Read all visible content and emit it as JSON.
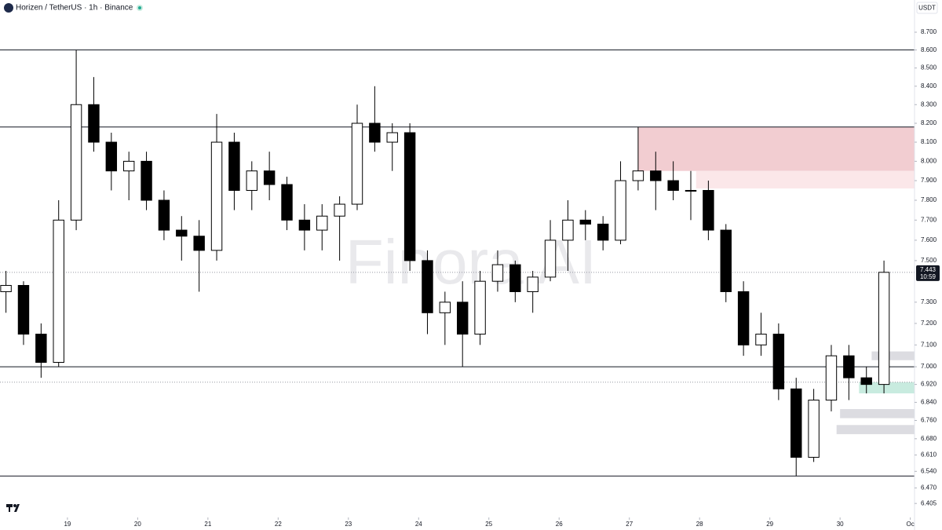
{
  "chart_data": {
    "type": "candlestick",
    "title": "Horizen / TetherUS · 1h · Binance",
    "currency": "USDT",
    "watermark": "Finora AI",
    "log_scale": true,
    "up_color": "#ffffff",
    "down_color": "#000000",
    "x": [
      18.0,
      18.25,
      18.5,
      18.75,
      19.0,
      19.25,
      19.5,
      19.75,
      20.0,
      20.25,
      20.5,
      20.75,
      21.0,
      21.25,
      21.5,
      21.75,
      22.0,
      22.25,
      22.5,
      22.75,
      23.0,
      23.25,
      23.5,
      23.75,
      24.0,
      24.25,
      24.5,
      24.75,
      25.0,
      25.25,
      25.5,
      25.75,
      26.0,
      26.25,
      26.5,
      26.75,
      27.0,
      27.25,
      27.5,
      27.75,
      28.0,
      28.25,
      28.5,
      28.75,
      29.0,
      29.25,
      29.5,
      29.75,
      30.0,
      30.25,
      30.5
    ],
    "open": [
      7.35,
      7.38,
      7.15,
      7.02,
      7.7,
      8.3,
      8.1,
      7.95,
      8.0,
      7.8,
      7.65,
      7.62,
      7.55,
      8.1,
      7.85,
      7.95,
      7.88,
      7.7,
      7.65,
      7.72,
      7.78,
      8.2,
      8.1,
      8.15,
      7.5,
      7.25,
      7.3,
      7.15,
      7.4,
      7.48,
      7.35,
      7.42,
      7.6,
      7.7,
      7.68,
      7.6,
      7.9,
      7.95,
      7.9,
      7.85,
      7.85,
      7.65,
      7.35,
      7.1,
      7.15,
      6.9,
      6.6,
      6.85,
      7.05,
      6.95,
      6.92
    ],
    "high": [
      7.45,
      7.4,
      7.2,
      7.8,
      8.6,
      8.45,
      8.15,
      8.05,
      8.05,
      7.85,
      7.72,
      7.7,
      8.25,
      8.15,
      8.0,
      8.05,
      7.92,
      7.78,
      7.78,
      7.82,
      8.3,
      8.4,
      8.2,
      8.2,
      7.55,
      7.35,
      7.4,
      7.45,
      7.55,
      7.5,
      7.45,
      7.7,
      7.8,
      7.75,
      7.72,
      8.0,
      8.18,
      8.05,
      8.0,
      7.95,
      7.9,
      7.68,
      7.4,
      7.25,
      7.2,
      6.95,
      6.9,
      7.1,
      7.1,
      7.0,
      7.5
    ],
    "low": [
      7.25,
      7.1,
      6.95,
      7.0,
      7.65,
      8.05,
      7.85,
      7.8,
      7.75,
      7.6,
      7.5,
      7.35,
      7.5,
      7.75,
      7.75,
      7.8,
      7.65,
      7.55,
      7.55,
      7.5,
      7.75,
      8.05,
      7.95,
      7.45,
      7.15,
      7.1,
      7.0,
      7.1,
      7.35,
      7.3,
      7.25,
      7.4,
      7.45,
      7.6,
      7.55,
      7.58,
      7.85,
      7.75,
      7.8,
      7.7,
      7.6,
      7.3,
      7.05,
      7.05,
      6.85,
      6.52,
      6.58,
      6.8,
      6.85,
      6.88,
      6.88
    ],
    "close": [
      7.38,
      7.15,
      7.02,
      7.7,
      8.3,
      8.1,
      7.95,
      8.0,
      7.8,
      7.65,
      7.62,
      7.55,
      8.1,
      7.85,
      7.95,
      7.88,
      7.7,
      7.65,
      7.72,
      7.78,
      8.2,
      8.1,
      8.15,
      7.5,
      7.25,
      7.3,
      7.15,
      7.4,
      7.48,
      7.35,
      7.42,
      7.6,
      7.7,
      7.68,
      7.6,
      7.9,
      7.95,
      7.9,
      7.85,
      7.85,
      7.65,
      7.35,
      7.1,
      7.15,
      6.9,
      6.6,
      6.85,
      7.05,
      6.95,
      6.92,
      7.443
    ],
    "last_price": 7.443,
    "countdown": "10:59",
    "levels": [
      {
        "value": 8.6,
        "style": "solid"
      },
      {
        "value": 8.18,
        "style": "solid"
      },
      {
        "value": 7.0,
        "style": "solid"
      },
      {
        "value": 6.52,
        "style": "solid"
      },
      {
        "value": 6.93,
        "style": "dotted"
      }
    ],
    "zones": [
      {
        "y0": 7.95,
        "y1": 8.18,
        "x0": 27.12,
        "color": "#f2cdd1"
      },
      {
        "y0": 7.86,
        "y1": 7.95,
        "x0": 27.95,
        "color": "#fbe7e9"
      },
      {
        "y0": 6.88,
        "y1": 6.93,
        "x0": 30.27,
        "color": "#c8ebdf"
      },
      {
        "y0": 7.03,
        "y1": 7.07,
        "x0": 30.45,
        "color": "#dcdce1"
      },
      {
        "y0": 6.77,
        "y1": 6.81,
        "x0": 30.0,
        "color": "#dcdce1"
      },
      {
        "y0": 6.7,
        "y1": 6.74,
        "x0": 29.95,
        "color": "#dcdce1"
      }
    ],
    "xlim": [
      18.04,
      31.06
    ],
    "ylim": [
      6.36,
      8.884
    ],
    "xticks": [
      19,
      20,
      21,
      22,
      23,
      24,
      25,
      26,
      27,
      28,
      29,
      30,
      {
        "value": 31,
        "label": "Oc"
      }
    ],
    "yticks": [
      {
        "value": 8.7,
        "label": "8.700"
      },
      {
        "value": 8.6,
        "label": "8.600"
      },
      {
        "value": 8.5,
        "label": "8.500"
      },
      {
        "value": 8.4,
        "label": "8.400"
      },
      {
        "value": 8.3,
        "label": "8.300"
      },
      {
        "value": 8.2,
        "label": "8.200"
      },
      {
        "value": 8.1,
        "label": "8.100"
      },
      {
        "value": 8,
        "label": "8.000"
      },
      {
        "value": 7.9,
        "label": "7.900"
      },
      {
        "value": 7.8,
        "label": "7.800"
      },
      {
        "value": 7.7,
        "label": "7.700"
      },
      {
        "value": 7.6,
        "label": "7.600"
      },
      {
        "value": 7.5,
        "label": "7.500"
      },
      {
        "value": 7.3,
        "label": "7.300"
      },
      {
        "value": 7.2,
        "label": "7.200"
      },
      {
        "value": 7.1,
        "label": "7.100"
      },
      {
        "value": 7,
        "label": "7.000"
      },
      {
        "value": 6.92,
        "label": "6.920"
      },
      {
        "value": 6.84,
        "label": "6.840"
      },
      {
        "value": 6.76,
        "label": "6.760"
      },
      {
        "value": 6.68,
        "label": "6.680"
      },
      {
        "value": 6.61,
        "label": "6.610"
      },
      {
        "value": 6.54,
        "label": "6.540"
      },
      {
        "value": 6.47,
        "label": "6.470"
      },
      {
        "value": 6.405,
        "label": "6.405"
      }
    ]
  }
}
